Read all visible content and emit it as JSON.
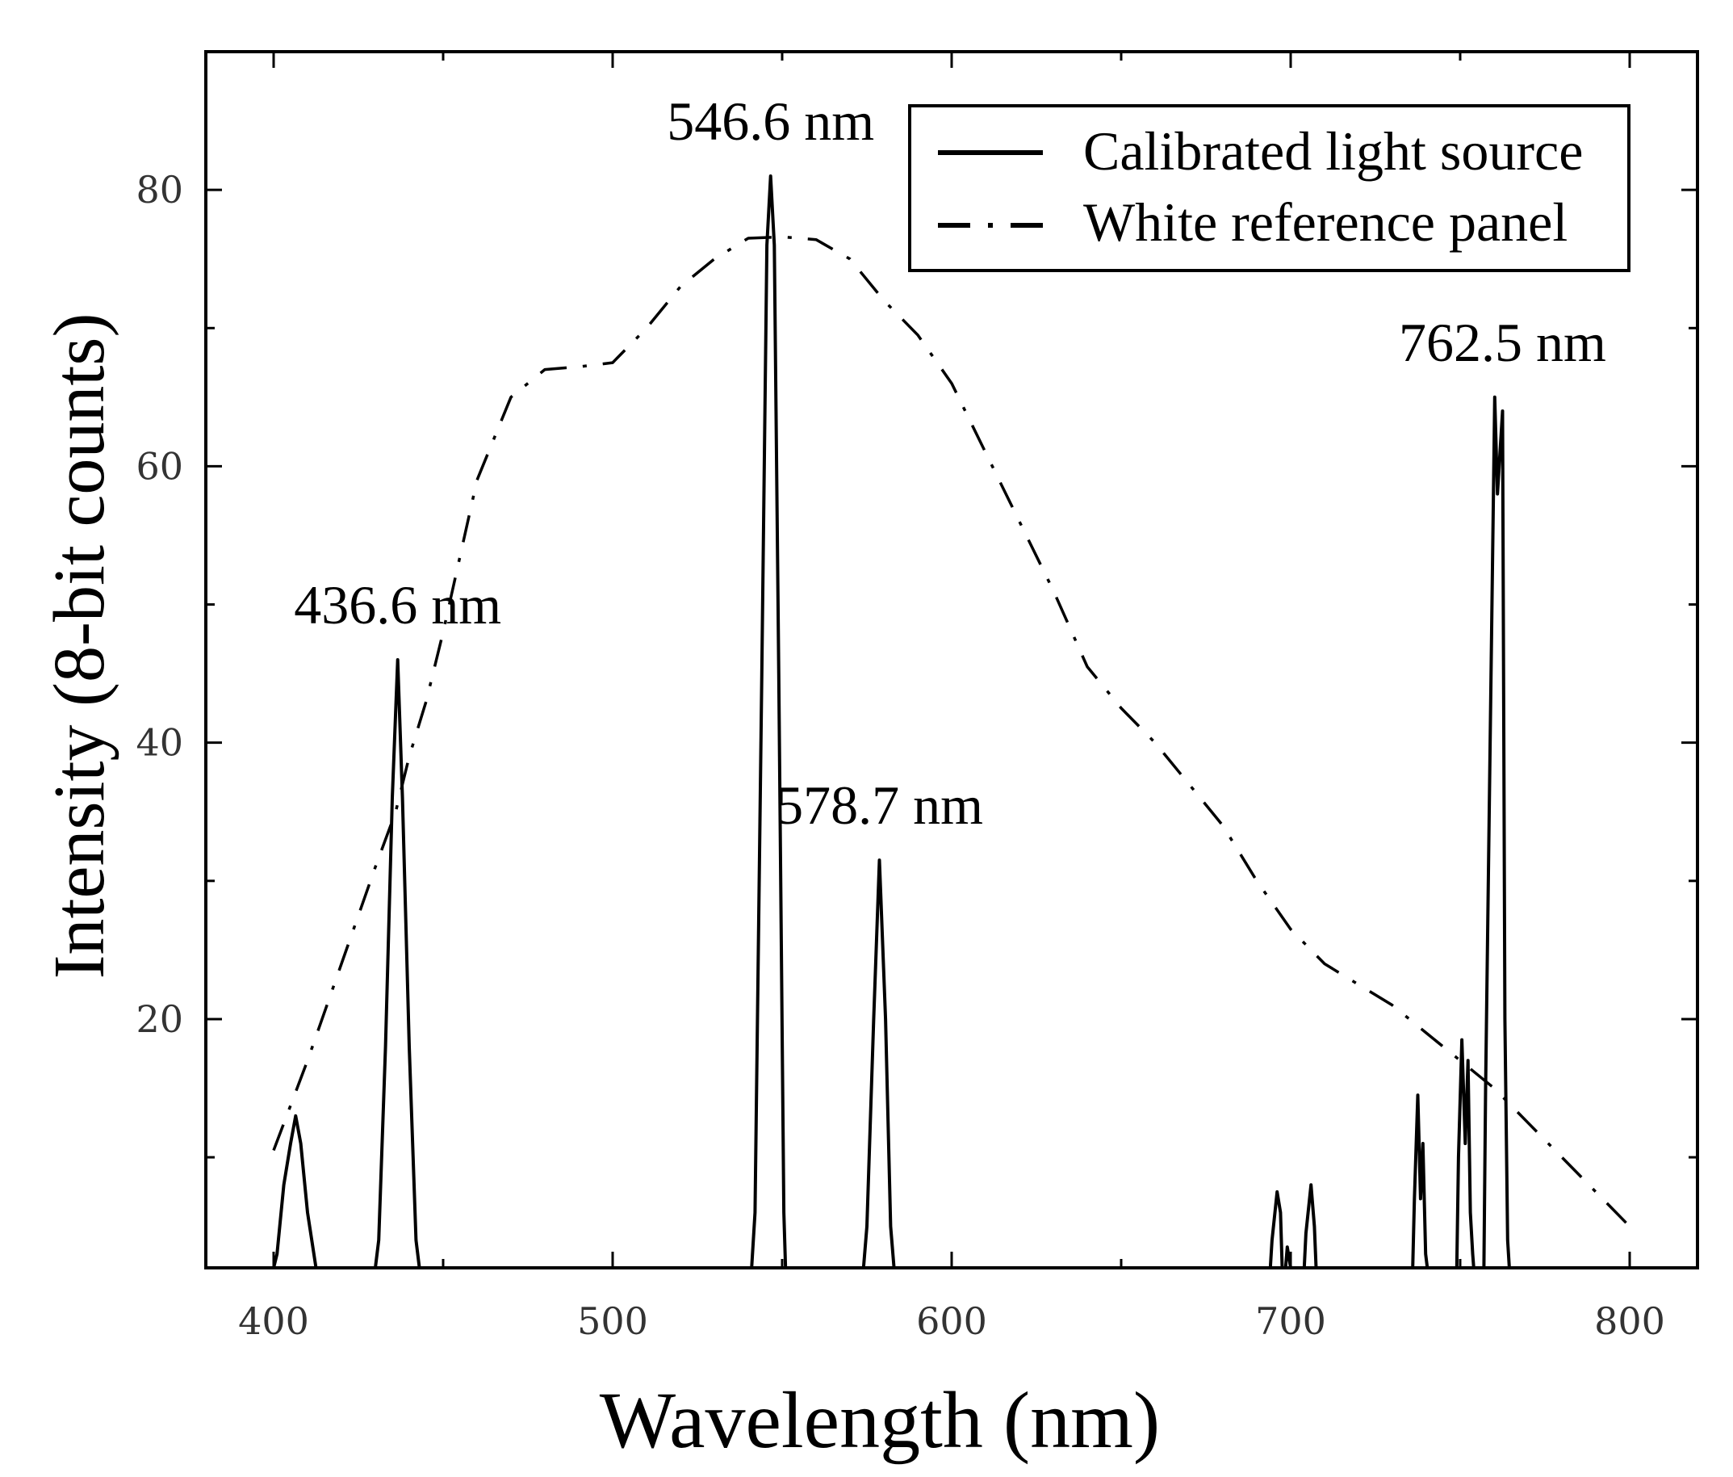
{
  "chart_data": {
    "type": "line",
    "title": "",
    "xlabel": "Wavelength (nm)",
    "ylabel": "Intensity (8-bit counts)",
    "xlim": [
      380,
      820
    ],
    "ylim": [
      2,
      90
    ],
    "x_ticks": [
      400,
      500,
      600,
      700,
      800
    ],
    "y_ticks": [
      20,
      40,
      60,
      80
    ],
    "grid": false,
    "legend_position": "top-right",
    "series": [
      {
        "name": "Calibrated light source",
        "style": "solid",
        "x": [
          400,
          401,
          403,
          405,
          406.5,
          408,
          410,
          412.5,
          413,
          430,
          431,
          433,
          435,
          436.6,
          438,
          440,
          442,
          443,
          541,
          542,
          544,
          545.5,
          546.6,
          547.7,
          549,
          550.5,
          551,
          574,
          575,
          577,
          578.7,
          580.5,
          582,
          583,
          694,
          694.5,
          696,
          697,
          697.5,
          698.5,
          699,
          700,
          704,
          704.5,
          706,
          707,
          707.5,
          708,
          736,
          736.5,
          737.5,
          738.3,
          739,
          739.8,
          740.3,
          749,
          749.5,
          750.5,
          751.5,
          752.3,
          753,
          753.7,
          754,
          757,
          757.5,
          759,
          760.2,
          761,
          762.5,
          763.2,
          764,
          764.5
        ],
        "values": [
          2,
          3,
          8,
          11,
          13,
          11,
          6,
          2,
          2,
          2,
          4,
          18,
          36,
          46,
          36,
          18,
          4,
          2,
          2,
          6,
          45,
          76,
          81,
          76,
          45,
          6,
          2,
          2,
          5,
          20,
          31.5,
          20,
          5,
          2,
          2,
          4,
          7.5,
          6,
          2,
          2,
          3.5,
          2,
          2,
          4.5,
          8,
          5,
          2,
          2,
          2,
          7,
          14.5,
          7,
          11,
          3,
          2,
          2,
          10,
          18.5,
          11,
          17,
          6,
          3,
          2,
          2,
          15,
          43,
          65,
          58,
          64,
          20,
          4,
          2
        ]
      },
      {
        "name": "White reference panel",
        "style": "dash-dot",
        "x": [
          400,
          410,
          420,
          430,
          436,
          440,
          445,
          450,
          460,
          470,
          480,
          490,
          500,
          510,
          520,
          530,
          540,
          550,
          560,
          570,
          580,
          590,
          600,
          610,
          620,
          630,
          640,
          650,
          660,
          670,
          680,
          690,
          700,
          710,
          720,
          730,
          740,
          750,
          760,
          770,
          780,
          790,
          800
        ],
        "values": [
          10.5,
          17,
          24,
          31,
          35,
          39,
          43,
          48,
          59,
          65,
          67,
          67.2,
          67.5,
          70,
          73,
          75,
          76.5,
          76.6,
          76.4,
          75,
          72,
          69.5,
          66,
          61,
          56,
          51,
          45.5,
          42.5,
          40,
          37,
          34,
          30,
          26.5,
          24,
          22.5,
          21,
          19,
          17,
          15,
          12.5,
          10,
          7.5,
          5
        ]
      }
    ],
    "annotations": [
      {
        "text": "436.6 nm",
        "x": 436.6,
        "y": 46
      },
      {
        "text": "546.6 nm",
        "x": 546.6,
        "y": 81
      },
      {
        "text": "578.7 nm",
        "x": 578.7,
        "y": 31.5
      },
      {
        "text": "762.5 nm",
        "x": 762.5,
        "y": 65
      }
    ]
  }
}
